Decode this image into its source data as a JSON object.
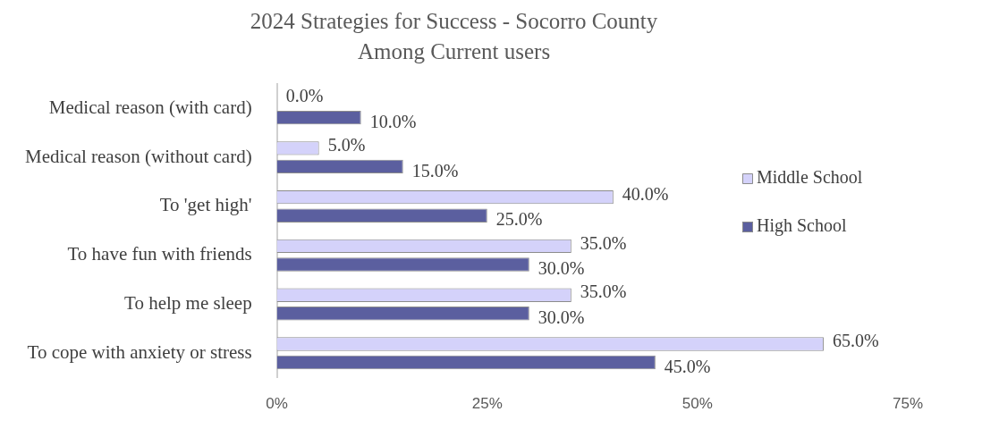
{
  "chart_data": {
    "type": "bar",
    "orientation": "horizontal",
    "title": "2024 Strategies for Success - Socorro County",
    "subtitle": "Among Current users",
    "categories": [
      "Medical reason (with card)",
      "Medical reason (without card)",
      "To 'get high'",
      "To have fun with friends",
      "To help me sleep",
      "To cope with anxiety or stress"
    ],
    "series": [
      {
        "name": "Middle School",
        "color": "#d4d2fa",
        "values": [
          0,
          5,
          40,
          35,
          35,
          65
        ],
        "value_labels": [
          "0.0%",
          "5.0%",
          "40.0%",
          "35.0%",
          "35.0%",
          "65.0%"
        ]
      },
      {
        "name": "High School",
        "color": "#5b5f9f",
        "values": [
          10,
          15,
          25,
          30,
          30,
          45
        ],
        "value_labels": [
          "10.0%",
          "15.0%",
          "25.0%",
          "30.0%",
          "30.0%",
          "45.0%"
        ]
      }
    ],
    "xlim": [
      0,
      75
    ],
    "xticks": [
      {
        "value": 0,
        "label": "0%"
      },
      {
        "value": 25,
        "label": "25%"
      },
      {
        "value": 50,
        "label": "50%"
      },
      {
        "value": 75,
        "label": "75%"
      }
    ],
    "grid": false,
    "legend": "right"
  }
}
